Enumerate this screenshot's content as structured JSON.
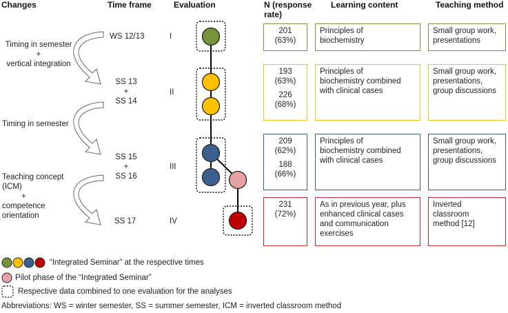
{
  "headers": {
    "changes": "Changes",
    "time_frame": "Time frame",
    "evaluation": "Evaluation",
    "n_response_line1": "N (response",
    "n_response_line2": "rate)",
    "learning_content": "Learning content",
    "teaching_method": "Teaching method"
  },
  "changes": {
    "c1_line1": "Timing in semester",
    "c1_plus": "+",
    "c1_line2": "vertical integration",
    "c2": "Timing in semester",
    "c3_line1": "Teaching concept",
    "c3_line2": "(ICM)",
    "c3_plus": "+",
    "c3_line3": "competence",
    "c3_line4": "orientation"
  },
  "time_frames": {
    "t1": "WS 12/13",
    "t2a": "SS 13",
    "t2plus": "+",
    "t2b": "SS 14",
    "t3a": "SS 15",
    "t3plus": "+",
    "t3b": "SS 16",
    "t4": "SS 17"
  },
  "evaluations": {
    "e1": "I",
    "e2": "II",
    "e3": "III",
    "e4": "IV"
  },
  "rows": {
    "r1": {
      "n1": "201",
      "rate1": "(63%)",
      "content_l1": "Principles of",
      "content_l2": "biochemistry",
      "method_l1": "Small group work,",
      "method_l2": "presentations"
    },
    "r2": {
      "n1": "193",
      "rate1": "(63%)",
      "n2": "226",
      "rate2": "(68%)",
      "content_l1": "Principles of",
      "content_l2": "biochemistry combined",
      "content_l3": "with clinical cases",
      "method_l1": "Small group work,",
      "method_l2": "presentations,",
      "method_l3": "group discussions"
    },
    "r3": {
      "n1": "209",
      "rate1": "(62%)",
      "n2": "188",
      "rate2": "(66%)",
      "content_l1": "Principles of",
      "content_l2": "biochemistry combined",
      "content_l3": "with clinical cases",
      "method_l1": "Small group work,",
      "method_l2": "presentations,",
      "method_l3": "group discussions"
    },
    "r4": {
      "n1": "231",
      "rate1": "(72%)",
      "content_l1": "As in previous year, plus",
      "content_l2": "enhanced clinical cases",
      "content_l3": "and communication",
      "content_l4": "exercises",
      "method_l1": "Inverted",
      "method_l2": "classroom",
      "method_l3": "method [12]"
    }
  },
  "legend": {
    "integrated": "“Integrated Seminar” at the respective times",
    "pilot": "Pilot phase of the “Integrated Seminar”",
    "combined": "Respective data combined to one evaluation for the analyses",
    "abbreviations": "Abbreviations: WS = winter semester, SS = summer semester, ICM = inverted classroom method"
  },
  "colors": {
    "green": "#77933c",
    "yellow": "#ffc000",
    "blue": "#3b5f8f",
    "red": "#c00000",
    "pink": "#e6a1a4"
  }
}
